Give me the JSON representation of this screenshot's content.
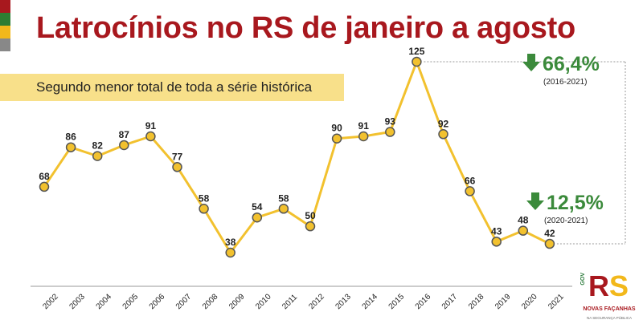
{
  "header": {
    "title": "Latrocínios no RS de janeiro a agosto",
    "subtitle": "Segundo menor total de toda a série histórica",
    "strip_colors": [
      "#a8181e",
      "#2e7d32",
      "#f2b81b",
      "#888888"
    ]
  },
  "colors": {
    "line": "#f2c12e",
    "marker_fill": "#f2c12e",
    "marker_stroke": "#555555",
    "title": "#a8181e",
    "positive_green": "#3b8a3b",
    "bracket": "#999999"
  },
  "chart_data": {
    "type": "line",
    "title": "Latrocínios no RS de janeiro a agosto",
    "categories": [
      "2002",
      "2003",
      "2004",
      "2005",
      "2006",
      "2007",
      "2008",
      "2009",
      "2010",
      "2011",
      "2012",
      "2013",
      "2014",
      "2015",
      "2016",
      "2017",
      "2018",
      "2019",
      "2020",
      "2021"
    ],
    "series": [
      {
        "name": "Latrocínios",
        "values": [
          68,
          86,
          82,
          87,
          91,
          77,
          58,
          38,
          54,
          58,
          50,
          90,
          91,
          93,
          125,
          92,
          66,
          43,
          48,
          42
        ]
      }
    ],
    "ylim": [
      38,
      125
    ],
    "xlabel": "",
    "ylabel": "",
    "grid": false,
    "legend": "none"
  },
  "annotations": [
    {
      "change": "66,4%",
      "period": "(2016-2021)",
      "icon": "down-arrow-icon"
    },
    {
      "change": "12,5%",
      "period": "(2020-2021)",
      "icon": "down-arrow-icon"
    }
  ],
  "logo": {
    "gov": "GOV",
    "r": "R",
    "s": "S",
    "tagline": "NOVAS FAÇANHAS",
    "subline": "NA SEGURANÇA PÚBLICA"
  }
}
